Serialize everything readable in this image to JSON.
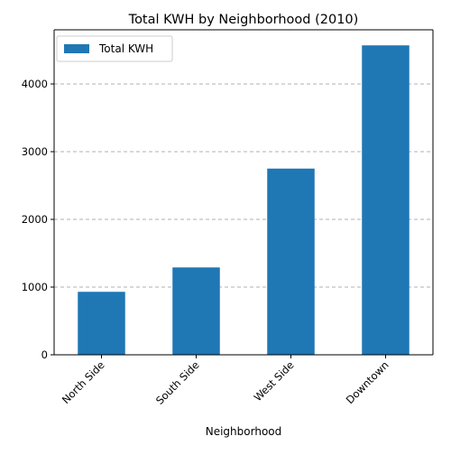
{
  "chart_data": {
    "type": "bar",
    "title": "Total KWH by Neighborhood (2010)",
    "xlabel": "Neighborhood",
    "ylabel": "",
    "categories": [
      "North Side",
      "South Side",
      "West Side",
      "Downtown"
    ],
    "series": [
      {
        "name": "Total KWH",
        "values": [
          930,
          1290,
          2750,
          4570
        ],
        "color": "#1f77b4"
      }
    ],
    "ylim": [
      0,
      4800
    ],
    "yticks": [
      0,
      1000,
      2000,
      3000,
      4000
    ],
    "ytick_labels": [
      "0",
      "1000",
      "2000",
      "3000",
      "4000"
    ],
    "grid": "y-dashed",
    "legend_position": "top-left",
    "xtick_rotation_deg": 45
  }
}
